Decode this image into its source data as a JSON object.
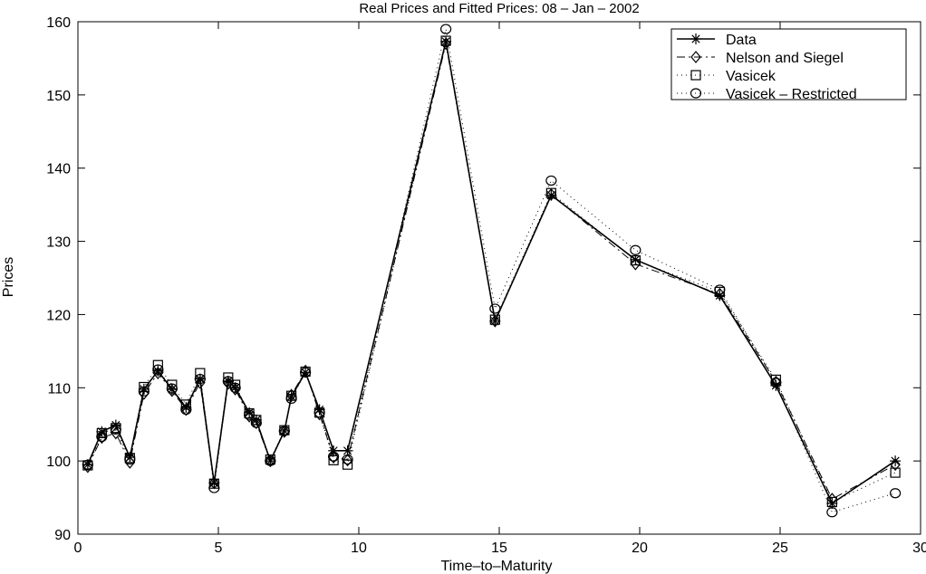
{
  "chart_data": {
    "type": "line",
    "title": "Real Prices and Fitted Prices: 08 – Jan – 2002",
    "xlabel": "Time–to–Maturity",
    "ylabel": "Prices",
    "xlim": [
      0,
      30
    ],
    "ylim": [
      90,
      160
    ],
    "xticks": [
      "0",
      "5",
      "10",
      "15",
      "20",
      "25",
      "30"
    ],
    "yticks": [
      "90",
      "100",
      "110",
      "120",
      "130",
      "140",
      "150",
      "160"
    ],
    "legend_position": "top-right",
    "x": [
      0.35,
      0.85,
      1.35,
      1.85,
      2.35,
      2.85,
      3.35,
      3.85,
      4.35,
      4.85,
      5.35,
      5.6,
      6.1,
      6.35,
      6.85,
      7.35,
      7.6,
      8.1,
      8.6,
      9.1,
      9.6,
      13.1,
      14.85,
      16.85,
      19.85,
      22.85,
      24.85,
      26.85,
      29.1
    ],
    "series": [
      {
        "name": "Data",
        "style": "solid",
        "marker": "star",
        "values": [
          99.5,
          104.0,
          104.9,
          100.5,
          109.8,
          112.3,
          109.8,
          107.3,
          111.2,
          97.0,
          110.9,
          110.0,
          106.6,
          105.6,
          100.0,
          104.1,
          108.8,
          112.1,
          107.0,
          101.4,
          101.4,
          157.3,
          119.1,
          136.3,
          127.5,
          122.6,
          110.3,
          94.2,
          100.0
        ]
      },
      {
        "name": "Nelson and Siegel",
        "style": "dashdot",
        "marker": "diamond",
        "values": [
          99.2,
          103.2,
          103.8,
          99.8,
          109.2,
          112.0,
          109.6,
          107.0,
          110.7,
          97.0,
          110.6,
          109.8,
          106.1,
          105.2,
          100.0,
          104.0,
          109.0,
          112.3,
          106.4,
          100.5,
          100.1,
          157.0,
          119.1,
          136.4,
          126.9,
          122.8,
          110.8,
          94.8,
          99.5
        ]
      },
      {
        "name": "Vasicek",
        "style": "dotted",
        "marker": "square",
        "values": [
          99.4,
          103.8,
          104.5,
          100.4,
          110.1,
          113.1,
          110.4,
          107.7,
          112.0,
          96.9,
          111.4,
          110.4,
          106.5,
          105.6,
          100.2,
          104.2,
          108.9,
          112.2,
          106.6,
          100.1,
          99.5,
          157.4,
          119.3,
          136.6,
          127.4,
          123.1,
          111.1,
          94.4,
          98.4
        ]
      },
      {
        "name": "Vasicek – Restricted",
        "style": "dotted",
        "marker": "circle",
        "values": [
          99.5,
          103.3,
          104.3,
          100.2,
          109.5,
          112.5,
          109.9,
          107.0,
          111.2,
          96.3,
          110.9,
          110.0,
          106.3,
          105.2,
          100.0,
          104.1,
          108.5,
          112.1,
          106.6,
          100.6,
          100.2,
          159.0,
          120.8,
          138.3,
          128.8,
          123.4,
          110.7,
          93.0,
          95.6
        ]
      }
    ]
  }
}
